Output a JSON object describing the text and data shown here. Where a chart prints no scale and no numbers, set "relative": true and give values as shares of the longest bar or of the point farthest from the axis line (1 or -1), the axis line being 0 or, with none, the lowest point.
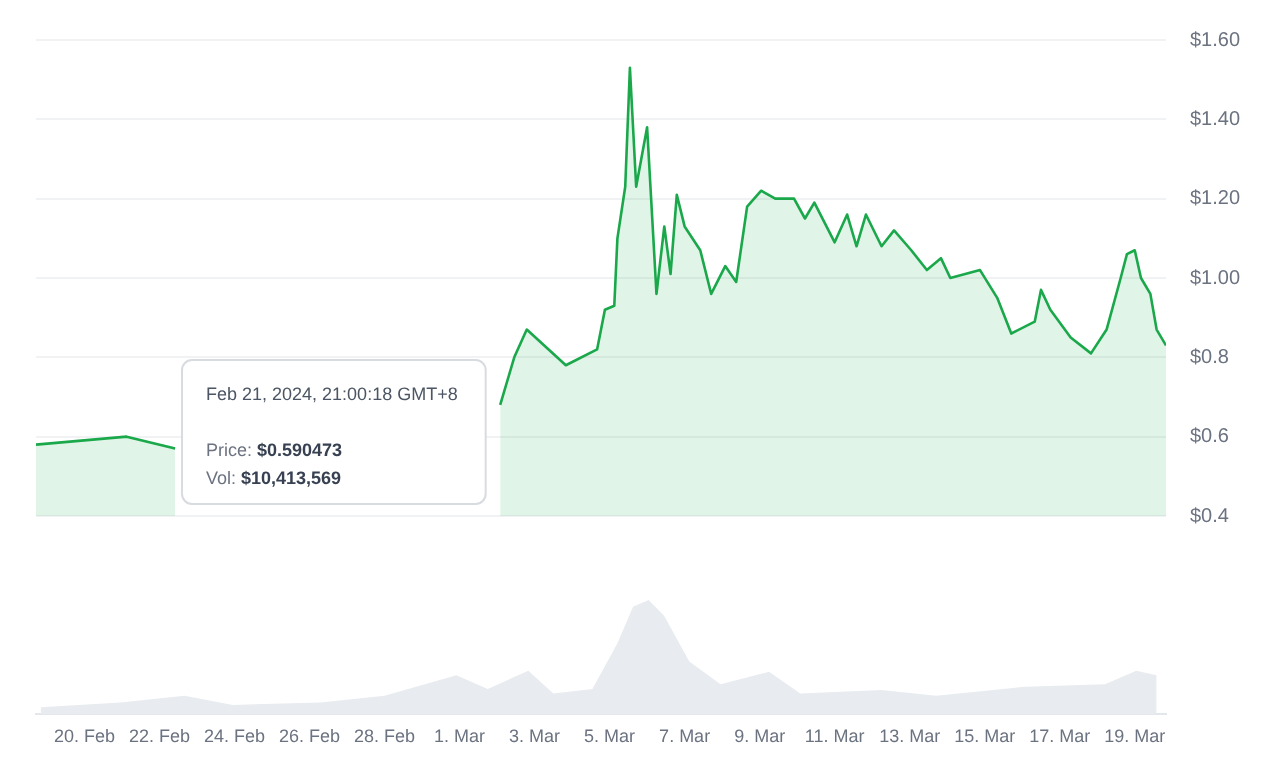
{
  "chart_data": [
    {
      "type": "area",
      "tick_labels": "y",
      "grid": "y",
      "xlim": [
        "2024-02-18T17:00",
        "2024-03-19T20:00"
      ],
      "ylim": [
        0.4,
        1.6
      ],
      "yticks": [
        {
          "value": 0.4,
          "label": "$0.4"
        },
        {
          "value": 0.6,
          "label": "$0.6"
        },
        {
          "value": 0.8,
          "label": "$0.8"
        },
        {
          "value": 1.0,
          "label": "$1.00"
        },
        {
          "value": 1.2,
          "label": "$1.20"
        },
        {
          "value": 1.4,
          "label": "$1.40"
        },
        {
          "value": 1.6,
          "label": "$1.60"
        }
      ],
      "x": [
        "2024-02-18T17:00",
        "2024-02-21T03:00",
        "2024-02-22T10:00",
        "2024-02-23T00:00",
        "2024-03-02T02:00",
        "2024-03-02T11:00",
        "2024-03-02T19:00",
        "2024-03-03T20:00",
        "2024-03-04T16:00",
        "2024-03-04T21:00",
        "2024-03-05T03:00",
        "2024-03-05T05:00",
        "2024-03-05T10:00",
        "2024-03-05T13:00",
        "2024-03-05T17:00",
        "2024-03-06T00:00",
        "2024-03-06T06:00",
        "2024-03-06T11:00",
        "2024-03-06T15:00",
        "2024-03-06T19:00",
        "2024-03-07T00:00",
        "2024-03-07T10:00",
        "2024-03-07T17:00",
        "2024-03-08T02:00",
        "2024-03-08T09:00",
        "2024-03-08T16:00",
        "2024-03-09T01:00",
        "2024-03-09T10:00",
        "2024-03-09T22:00",
        "2024-03-10T05:00",
        "2024-03-10T11:00",
        "2024-03-11T00:00",
        "2024-03-11T08:00",
        "2024-03-11T14:00",
        "2024-03-11T20:00",
        "2024-03-12T06:00",
        "2024-03-12T14:00",
        "2024-03-13T01:00",
        "2024-03-13T11:00",
        "2024-03-13T20:00",
        "2024-03-14T02:00",
        "2024-03-14T21:00",
        "2024-03-15T08:00",
        "2024-03-15T17:00",
        "2024-03-16T08:00",
        "2024-03-16T12:00",
        "2024-03-16T18:00",
        "2024-03-17T07:00",
        "2024-03-17T20:00",
        "2024-03-18T06:00",
        "2024-03-18T15:00",
        "2024-03-18T19:00",
        "2024-03-19T00:00",
        "2024-03-19T04:00",
        "2024-03-19T10:00",
        "2024-03-19T14:00",
        "2024-03-19T20:00"
      ],
      "series": [
        {
          "color": "#1aa84b",
          "values": [
            0.58,
            0.6,
            0.57,
            null,
            0.68,
            0.8,
            0.87,
            0.78,
            0.82,
            0.92,
            0.93,
            1.1,
            1.23,
            1.53,
            1.23,
            1.38,
            0.96,
            1.13,
            1.01,
            1.21,
            1.13,
            1.07,
            0.96,
            1.03,
            0.99,
            1.18,
            1.22,
            1.2,
            1.2,
            1.15,
            1.19,
            1.09,
            1.16,
            1.08,
            1.16,
            1.08,
            1.12,
            1.07,
            1.02,
            1.05,
            1.0,
            1.02,
            0.95,
            0.86,
            0.89,
            0.97,
            0.92,
            0.85,
            0.81,
            0.87,
            1.0,
            1.06,
            1.07,
            1.0,
            0.96,
            0.87,
            0.83
          ]
        }
      ],
      "annotations": [
        "Feb 21, 2024, 21:00:18 GMT+8",
        "Price: $0.590473",
        "Vol: $10,413,569"
      ]
    },
    {
      "type": "area",
      "relative": true,
      "tick_labels": "x",
      "xlim": [
        "2024-02-18T17:00",
        "2024-03-19T20:00"
      ],
      "xticks": [
        {
          "value": "2024-02-20",
          "label": "20. Feb"
        },
        {
          "value": "2024-02-22",
          "label": "22. Feb"
        },
        {
          "value": "2024-02-24",
          "label": "24. Feb"
        },
        {
          "value": "2024-02-26",
          "label": "26. Feb"
        },
        {
          "value": "2024-02-28",
          "label": "28. Feb"
        },
        {
          "value": "2024-03-01",
          "label": "1. Mar"
        },
        {
          "value": "2024-03-03",
          "label": "3. Mar"
        },
        {
          "value": "2024-03-05",
          "label": "5. Mar"
        },
        {
          "value": "2024-03-07",
          "label": "7. Mar"
        },
        {
          "value": "2024-03-09",
          "label": "9. Mar"
        },
        {
          "value": "2024-03-11",
          "label": "11. Mar"
        },
        {
          "value": "2024-03-13",
          "label": "13. Mar"
        },
        {
          "value": "2024-03-15",
          "label": "15. Mar"
        },
        {
          "value": "2024-03-17",
          "label": "17. Mar"
        },
        {
          "value": "2024-03-19",
          "label": "19. Mar"
        }
      ],
      "x": [
        "2024-02-18T20:00",
        "2024-02-20T23:00",
        "2024-02-22T16:00",
        "2024-02-23T23:00",
        "2024-02-26T07:00",
        "2024-02-28T00:00",
        "2024-02-29T22:00",
        "2024-03-01T18:00",
        "2024-03-02T20:00",
        "2024-03-03T12:00",
        "2024-03-04T13:00",
        "2024-03-05T05:00",
        "2024-03-05T15:00",
        "2024-03-06T01:00",
        "2024-03-06T11:00",
        "2024-03-07T03:00",
        "2024-03-07T23:00",
        "2024-03-09T06:00",
        "2024-03-10T02:00",
        "2024-03-12T06:00",
        "2024-03-13T17:00",
        "2024-03-16T02:00",
        "2024-03-18T05:00",
        "2024-03-19T01:00",
        "2024-03-19T14:00"
      ],
      "series": [
        {
          "color": "#e8ebef",
          "values": [
            0.06,
            0.1,
            0.16,
            0.08,
            0.1,
            0.16,
            0.34,
            0.22,
            0.38,
            0.18,
            0.22,
            0.62,
            0.94,
            1.0,
            0.86,
            0.46,
            0.26,
            0.37,
            0.18,
            0.21,
            0.16,
            0.24,
            0.26,
            0.38,
            0.34
          ]
        }
      ]
    }
  ]
}
